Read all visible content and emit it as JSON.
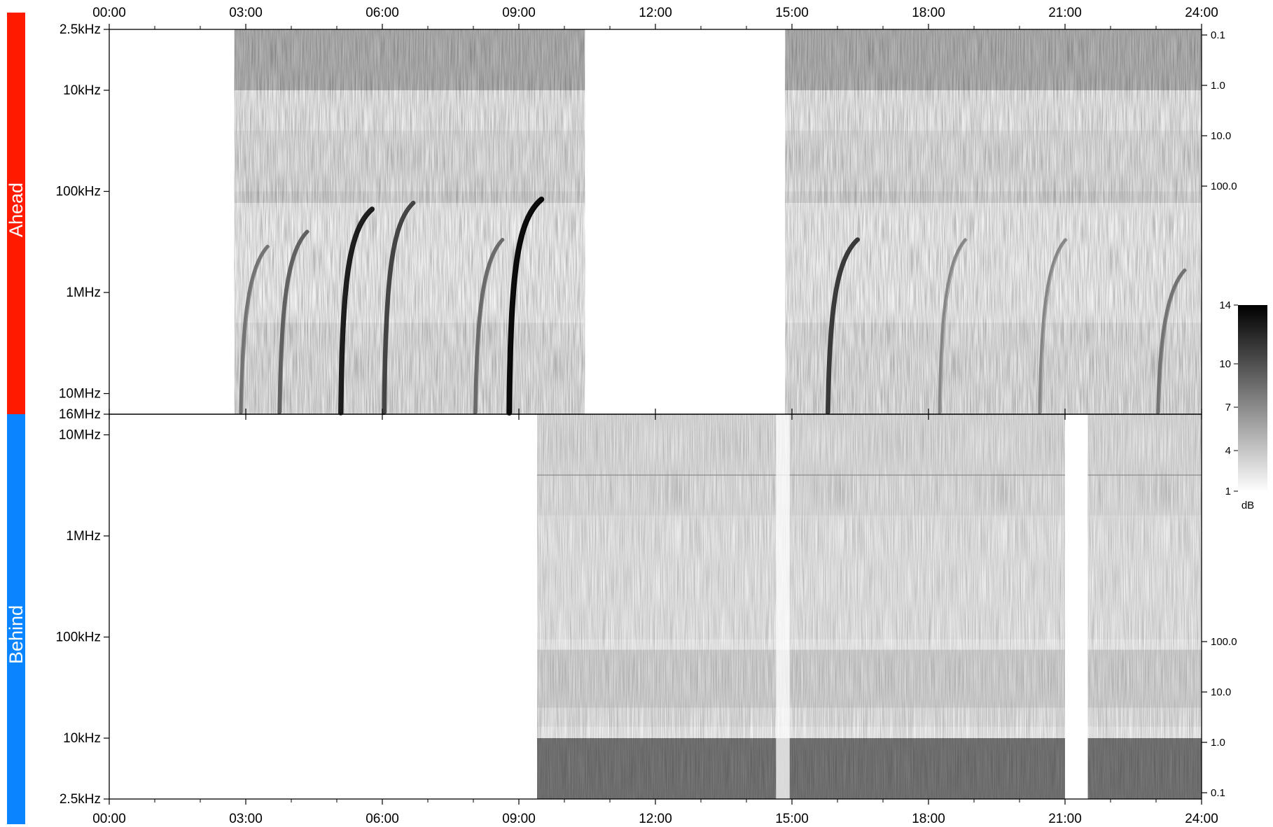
{
  "chart_data": [
    {
      "type": "heatmap",
      "panel": "ahead",
      "panel_label": "Ahead",
      "panel_color": "#ff1a00",
      "x_ticks": [
        "00:00",
        "03:00",
        "06:00",
        "09:00",
        "12:00",
        "15:00",
        "18:00",
        "21:00",
        "24:00"
      ],
      "xlim_hours": [
        0,
        24
      ],
      "y_scale": "log",
      "y_direction": "frequency decreases upward",
      "y_ticks": [
        "2.5kHz",
        "10kHz",
        "100kHz",
        "1MHz",
        "10MHz",
        "16MHz"
      ],
      "ylim": [
        "2.5kHz",
        "16MHz"
      ],
      "right_ticks": [
        "0.1",
        "1.0",
        "10.0",
        "100.0"
      ],
      "data_coverage_hours": [
        [
          2.75,
          10.45
        ],
        [
          14.85,
          24.0
        ]
      ],
      "bursts": [
        {
          "start_hour": 2.95,
          "intensity": 0.45,
          "top_freq": "350kHz"
        },
        {
          "start_hour": 3.8,
          "intensity": 0.55,
          "top_freq": "250kHz"
        },
        {
          "start_hour": 5.15,
          "intensity": 0.9,
          "top_freq": "150kHz"
        },
        {
          "start_hour": 6.1,
          "intensity": 0.7,
          "top_freq": "130kHz"
        },
        {
          "start_hour": 8.1,
          "intensity": 0.5,
          "top_freq": "300kHz"
        },
        {
          "start_hour": 8.85,
          "intensity": 1.0,
          "top_freq": "120kHz"
        },
        {
          "start_hour": 15.85,
          "intensity": 0.75,
          "top_freq": "300kHz"
        },
        {
          "start_hour": 18.3,
          "intensity": 0.35,
          "top_freq": "300kHz"
        },
        {
          "start_hour": 20.5,
          "intensity": 0.35,
          "top_freq": "300kHz"
        },
        {
          "start_hour": 23.1,
          "intensity": 0.45,
          "top_freq": "600kHz"
        }
      ]
    },
    {
      "type": "heatmap",
      "panel": "behind",
      "panel_label": "Behind",
      "panel_color": "#0a84ff",
      "x_ticks": [
        "00:00",
        "03:00",
        "06:00",
        "09:00",
        "12:00",
        "15:00",
        "18:00",
        "21:00",
        "24:00"
      ],
      "xlim_hours": [
        0,
        24
      ],
      "y_scale": "log",
      "y_direction": "frequency increases upward",
      "y_ticks": [
        "10MHz",
        "1MHz",
        "100kHz",
        "10kHz",
        "2.5kHz"
      ],
      "ylim": [
        "2.5kHz",
        "16MHz"
      ],
      "right_ticks": [
        "100.0",
        "10.0",
        "1.0",
        "0.1"
      ],
      "data_coverage_hours": [
        [
          9.4,
          21.0
        ],
        [
          21.5,
          24.0
        ]
      ],
      "gaps_hours": [
        [
          14.65,
          14.95
        ]
      ]
    }
  ],
  "colorbar": {
    "ticks": [
      "14",
      "10",
      "7",
      "4",
      "1"
    ],
    "unit": "dB",
    "scale": "white to black"
  }
}
